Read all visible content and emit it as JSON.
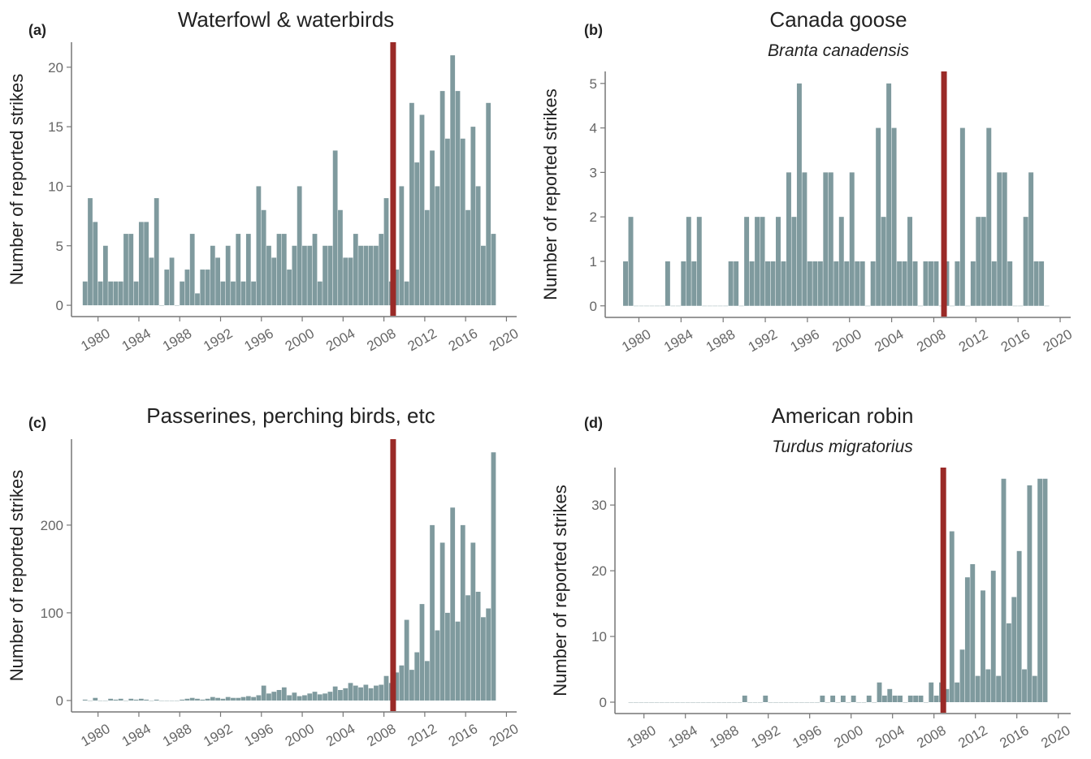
{
  "chart_data": [
    {
      "type": "bar",
      "panel": "(a)",
      "title": "Waterfowl & waterbirds",
      "ylabel": "Number of reported strikes",
      "color": "#7f9a9e",
      "x": [
        1978.5,
        1979,
        1979.5,
        1980,
        1980.5,
        1981,
        1981.5,
        1982,
        1982.5,
        1983,
        1983.5,
        1984,
        1984.5,
        1985,
        1985.5,
        1986,
        1986.5,
        1987,
        1987.5,
        1988,
        1988.5,
        1989,
        1989.5,
        1990,
        1990.5,
        1991,
        1991.5,
        1992,
        1992.5,
        1993,
        1993.5,
        1994,
        1994.5,
        1995,
        1995.5,
        1996,
        1996.5,
        1997,
        1997.5,
        1998,
        1998.5,
        1999,
        1999.5,
        2000,
        2000.5,
        2001,
        2001.5,
        2002,
        2002.5,
        2003,
        2003.5,
        2004,
        2004.5,
        2005,
        2005.5,
        2006,
        2006.5,
        2007,
        2007.5,
        2008,
        2008.5,
        2009,
        2009.5,
        2010,
        2010.5,
        2011,
        2011.5,
        2012,
        2012.5,
        2013,
        2013.5,
        2014,
        2014.5,
        2015,
        2015.5,
        2016,
        2016.5,
        2017,
        2017.5,
        2018,
        2018.5
      ],
      "values": [
        2,
        9,
        7,
        2,
        5,
        2,
        2,
        2,
        6,
        6,
        2,
        7,
        7,
        4,
        9,
        0,
        3,
        4,
        0,
        2,
        3,
        6,
        1,
        3,
        3,
        5,
        4,
        2,
        5,
        2,
        6,
        2,
        6,
        2,
        10,
        8,
        5,
        4,
        6,
        6,
        3,
        5,
        10,
        5,
        5,
        6,
        2,
        5,
        5,
        13,
        8,
        4,
        4,
        6,
        5,
        5,
        5,
        5,
        6,
        9,
        2,
        3,
        10,
        2,
        17,
        12,
        16,
        8,
        13,
        10,
        18,
        14,
        21,
        18,
        14,
        8,
        15,
        10,
        5,
        17,
        6
      ],
      "xlim": [
        1977.4,
        2021.0
      ],
      "xticks": [
        1980,
        1984,
        1988,
        1992,
        1996,
        2000,
        2004,
        2008,
        2012,
        2016,
        2020
      ],
      "ylim": [
        -0.95,
        22.1
      ],
      "yticks": [
        0,
        5,
        10,
        15,
        20
      ],
      "vline": {
        "x": 2008.9,
        "color": "#9a2a27"
      }
    },
    {
      "type": "bar",
      "panel": "(b)",
      "title": "Canada goose",
      "subtitle": "Branta canadensis",
      "ylabel": "Number of reported strikes",
      "color": "#7f9a9e",
      "x": [
        1978.5,
        1979,
        1979.5,
        1980,
        1980.5,
        1981,
        1981.5,
        1982,
        1982.5,
        1983,
        1983.5,
        1984,
        1984.5,
        1985,
        1985.5,
        1986,
        1986.5,
        1987,
        1987.5,
        1988,
        1988.5,
        1989,
        1989.5,
        1990,
        1990.5,
        1991,
        1991.5,
        1992,
        1992.5,
        1993,
        1993.5,
        1994,
        1994.5,
        1995,
        1995.5,
        1996,
        1996.5,
        1997,
        1997.5,
        1998,
        1998.5,
        1999,
        1999.5,
        2000,
        2000.5,
        2001,
        2001.5,
        2002,
        2002.5,
        2003,
        2003.5,
        2004,
        2004.5,
        2005,
        2005.5,
        2006,
        2006.5,
        2007,
        2007.5,
        2008,
        2008.5,
        2009,
        2009.5,
        2010,
        2010.5,
        2011,
        2011.5,
        2012,
        2012.5,
        2013,
        2013.5,
        2014,
        2014.5,
        2015,
        2015.5,
        2016,
        2016.5,
        2017,
        2017.5,
        2018,
        2018.5
      ],
      "values": [
        1,
        2,
        0,
        0,
        0,
        0,
        0,
        0,
        1,
        0,
        0,
        1,
        2,
        1,
        2,
        0,
        0,
        0,
        0,
        0,
        1,
        1,
        0,
        2,
        1,
        2,
        2,
        1,
        1,
        2,
        1,
        3,
        2,
        5,
        3,
        1,
        1,
        1,
        3,
        3,
        1,
        2,
        1,
        3,
        1,
        1,
        0,
        1,
        4,
        2,
        5,
        4,
        1,
        1,
        2,
        1,
        0,
        1,
        1,
        1,
        0,
        1,
        0,
        1,
        4,
        0,
        1,
        2,
        2,
        4,
        1,
        3,
        3,
        1,
        0,
        0,
        2,
        3,
        1,
        1,
        0
      ],
      "xlim": [
        1976.8,
        2021.0
      ],
      "xticks": [
        1980,
        1984,
        1988,
        1992,
        1996,
        2000,
        2004,
        2008,
        2012,
        2016,
        2020
      ],
      "ylim": [
        -0.26,
        5.27
      ],
      "yticks": [
        0,
        1,
        2,
        3,
        4,
        5
      ],
      "vline": {
        "x": 2008.97,
        "color": "#9a2a27"
      }
    },
    {
      "type": "bar",
      "panel": "(c)",
      "title": "Passerines, perching birds, etc",
      "ylabel": "Number of reported strikes",
      "color": "#7f9a9e",
      "x": [
        1978.5,
        1979,
        1979.5,
        1980,
        1980.5,
        1981,
        1981.5,
        1982,
        1982.5,
        1983,
        1983.5,
        1984,
        1984.5,
        1985,
        1985.5,
        1986,
        1986.5,
        1987,
        1987.5,
        1988,
        1988.5,
        1989,
        1989.5,
        1990,
        1990.5,
        1991,
        1991.5,
        1992,
        1992.5,
        1993,
        1993.5,
        1994,
        1994.5,
        1995,
        1995.5,
        1996,
        1996.5,
        1997,
        1997.5,
        1998,
        1998.5,
        1999,
        1999.5,
        2000,
        2000.5,
        2001,
        2001.5,
        2002,
        2002.5,
        2003,
        2003.5,
        2004,
        2004.5,
        2005,
        2005.5,
        2006,
        2006.5,
        2007,
        2007.5,
        2008,
        2008.5,
        2009,
        2009.5,
        2010,
        2010.5,
        2011,
        2011.5,
        2012,
        2012.5,
        2013,
        2013.5,
        2014,
        2014.5,
        2015,
        2015.5,
        2016,
        2016.5,
        2017,
        2017.5,
        2018,
        2018.5
      ],
      "values": [
        1,
        0,
        3,
        0,
        0,
        2,
        1,
        2,
        0,
        2,
        1,
        2,
        1,
        0,
        1,
        0,
        0,
        0,
        0,
        1,
        2,
        3,
        2,
        1,
        2,
        4,
        3,
        2,
        4,
        3,
        3,
        4,
        5,
        4,
        6,
        17,
        8,
        10,
        12,
        15,
        6,
        9,
        5,
        6,
        8,
        10,
        7,
        8,
        10,
        16,
        12,
        14,
        20,
        17,
        15,
        18,
        14,
        17,
        18,
        28,
        20,
        32,
        40,
        92,
        35,
        55,
        110,
        45,
        200,
        80,
        180,
        100,
        220,
        90,
        200,
        120,
        180,
        124,
        95,
        105,
        283
      ],
      "xlim": [
        1977.4,
        2021.0
      ],
      "xticks": [
        1980,
        1984,
        1988,
        1992,
        1996,
        2000,
        2004,
        2008,
        2012,
        2016,
        2020
      ],
      "ylim": [
        -13,
        298
      ],
      "yticks": [
        0,
        100,
        200
      ],
      "vline": {
        "x": 2008.9,
        "color": "#9a2a27"
      }
    },
    {
      "type": "bar",
      "panel": "(d)",
      "title": "American robin",
      "subtitle": "Turdus migratorius",
      "ylabel": "Number of reported strikes",
      "color": "#7f9a9e",
      "x": [
        1978.5,
        1979,
        1979.5,
        1980,
        1980.5,
        1981,
        1981.5,
        1982,
        1982.5,
        1983,
        1983.5,
        1984,
        1984.5,
        1985,
        1985.5,
        1986,
        1986.5,
        1987,
        1987.5,
        1988,
        1988.5,
        1989,
        1989.5,
        1990,
        1990.5,
        1991,
        1991.5,
        1992,
        1992.5,
        1993,
        1993.5,
        1994,
        1994.5,
        1995,
        1995.5,
        1996,
        1996.5,
        1997,
        1997.5,
        1998,
        1998.5,
        1999,
        1999.5,
        2000,
        2000.5,
        2001,
        2001.5,
        2002,
        2002.5,
        2003,
        2003.5,
        2004,
        2004.5,
        2005,
        2005.5,
        2006,
        2006.5,
        2007,
        2007.5,
        2008,
        2008.5,
        2009,
        2009.5,
        2010,
        2010.5,
        2011,
        2011.5,
        2012,
        2012.5,
        2013,
        2013.5,
        2014,
        2014.5,
        2015,
        2015.5,
        2016,
        2016.5,
        2017,
        2017.5,
        2018,
        2018.5
      ],
      "values": [
        0,
        0,
        0,
        0,
        0,
        0,
        0,
        0,
        0,
        0,
        0,
        0,
        0,
        0,
        0,
        0,
        0,
        0,
        0,
        0,
        0,
        0,
        1,
        0,
        0,
        0,
        1,
        0,
        0,
        0,
        0,
        0,
        0,
        0,
        0,
        0,
        0,
        1,
        0,
        1,
        0,
        1,
        0,
        1,
        0,
        0,
        1,
        0,
        3,
        1,
        2,
        1,
        1,
        0,
        1,
        1,
        1,
        0,
        3,
        1,
        3,
        2,
        26,
        3,
        8,
        19,
        21,
        4,
        17,
        5,
        20,
        4,
        34,
        12,
        16,
        23,
        5,
        33,
        4,
        34,
        34
      ],
      "xlim": [
        1977.2,
        2021.2
      ],
      "xticks": [
        1980,
        1984,
        1988,
        1992,
        1996,
        2000,
        2004,
        2008,
        2012,
        2016,
        2020
      ],
      "ylim": [
        -1.73,
        35.7
      ],
      "yticks": [
        0,
        10,
        20,
        30
      ],
      "vline": {
        "x": 2008.9,
        "color": "#9a2a27"
      }
    }
  ]
}
